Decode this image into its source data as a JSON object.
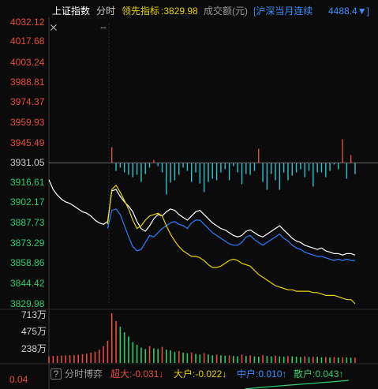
{
  "header": {
    "index_name": "上证指数",
    "tab": "分时",
    "leader_label": "领先指标",
    "leader_value": "3829.98",
    "volume_label": "成交额(元)",
    "contract_label": "[沪深当月连续",
    "contract_value": "4488.4▼]"
  },
  "icons": {
    "close": "close-icon",
    "resize": "resize-cursor-icon"
  },
  "price_axis": {
    "reference": "3931.05",
    "up_labels": [
      "4032.12",
      "4017.68",
      "4003.24",
      "3988.81",
      "3974.37",
      "3959.93",
      "3945.49"
    ],
    "down_labels": [
      "3916.61",
      "3902.17",
      "3887.73",
      "3873.29",
      "3858.86",
      "3844.42",
      "3829.98"
    ]
  },
  "volume_axis": {
    "labels": [
      "713万",
      "475万",
      "238万"
    ]
  },
  "bottom": {
    "help": "?",
    "title": "分时博弈",
    "super": "超大:-0.031↓",
    "big": "大户:-0.022↓",
    "mid": "中户:0.010↑",
    "retail": "散户:0.043↑",
    "left_value": "0.04"
  },
  "colors": {
    "up": "#e74c3c",
    "down": "#2ecc71",
    "price_line": "#ffffff",
    "avg_line": "#2a7fff",
    "leader_line": "#e6d200",
    "breadth_down": "#2bc4d0",
    "accent_blue": "#3b8fff"
  },
  "series": {
    "price": [
      [
        0,
        3919
      ],
      [
        1,
        3912
      ],
      [
        2,
        3908
      ],
      [
        3,
        3905
      ],
      [
        4,
        3903
      ],
      [
        5,
        3902
      ],
      [
        6,
        3900
      ],
      [
        7,
        3898
      ],
      [
        8,
        3896
      ],
      [
        9,
        3895
      ],
      [
        10,
        3893
      ],
      [
        11,
        3890
      ],
      [
        12,
        3888
      ],
      [
        13,
        3887
      ],
      [
        14,
        3889
      ],
      [
        15,
        3911
      ],
      [
        16,
        3912
      ],
      [
        17,
        3907
      ],
      [
        18,
        3903
      ],
      [
        19,
        3900
      ],
      [
        20,
        3896
      ],
      [
        21,
        3889
      ],
      [
        22,
        3884
      ],
      [
        23,
        3882
      ],
      [
        24,
        3886
      ],
      [
        25,
        3891
      ],
      [
        26,
        3894
      ],
      [
        27,
        3893
      ],
      [
        28,
        3896
      ],
      [
        29,
        3898
      ],
      [
        30,
        3897
      ],
      [
        31,
        3894
      ],
      [
        32,
        3892
      ],
      [
        33,
        3890
      ],
      [
        34,
        3893
      ],
      [
        35,
        3896
      ],
      [
        36,
        3897
      ],
      [
        37,
        3894
      ],
      [
        38,
        3891
      ],
      [
        39,
        3888
      ],
      [
        40,
        3886
      ],
      [
        41,
        3884
      ],
      [
        42,
        3883
      ],
      [
        43,
        3881
      ],
      [
        44,
        3879
      ],
      [
        45,
        3878
      ],
      [
        46,
        3879
      ],
      [
        47,
        3882
      ],
      [
        48,
        3883
      ],
      [
        49,
        3881
      ],
      [
        50,
        3879
      ],
      [
        51,
        3878
      ],
      [
        52,
        3880
      ],
      [
        53,
        3882
      ],
      [
        54,
        3884
      ],
      [
        55,
        3886
      ],
      [
        56,
        3883
      ],
      [
        57,
        3880
      ],
      [
        58,
        3877
      ],
      [
        59,
        3875
      ],
      [
        60,
        3874
      ],
      [
        61,
        3872
      ],
      [
        62,
        3871
      ],
      [
        63,
        3870
      ],
      [
        64,
        3869
      ],
      [
        65,
        3870
      ],
      [
        66,
        3868
      ],
      [
        67,
        3867
      ],
      [
        68,
        3866
      ],
      [
        69,
        3866
      ],
      [
        70,
        3865
      ],
      [
        71,
        3866
      ],
      [
        72,
        3866
      ],
      [
        73,
        3865
      ]
    ],
    "avg": [
      [
        14,
        3884
      ],
      [
        15,
        3897
      ],
      [
        16,
        3898
      ],
      [
        17,
        3894
      ],
      [
        18,
        3886
      ],
      [
        19,
        3878
      ],
      [
        20,
        3871
      ],
      [
        21,
        3868
      ],
      [
        22,
        3869
      ],
      [
        23,
        3874
      ],
      [
        24,
        3879
      ],
      [
        25,
        3878
      ],
      [
        26,
        3881
      ],
      [
        27,
        3884
      ],
      [
        28,
        3886
      ],
      [
        29,
        3888
      ],
      [
        30,
        3889
      ],
      [
        31,
        3887
      ],
      [
        32,
        3886
      ],
      [
        33,
        3884
      ],
      [
        34,
        3888
      ],
      [
        35,
        3890
      ],
      [
        36,
        3890
      ],
      [
        37,
        3887
      ],
      [
        38,
        3884
      ],
      [
        39,
        3881
      ],
      [
        40,
        3879
      ],
      [
        41,
        3877
      ],
      [
        42,
        3875
      ],
      [
        43,
        3873
      ],
      [
        44,
        3872
      ],
      [
        45,
        3872
      ],
      [
        46,
        3874
      ],
      [
        47,
        3878
      ],
      [
        48,
        3879
      ],
      [
        49,
        3876
      ],
      [
        50,
        3874
      ],
      [
        51,
        3872
      ],
      [
        52,
        3874
      ],
      [
        53,
        3876
      ],
      [
        54,
        3878
      ],
      [
        55,
        3880
      ],
      [
        56,
        3877
      ],
      [
        57,
        3875
      ],
      [
        58,
        3872
      ],
      [
        59,
        3870
      ],
      [
        60,
        3869
      ],
      [
        61,
        3867
      ],
      [
        62,
        3866
      ],
      [
        63,
        3865
      ],
      [
        64,
        3864
      ],
      [
        65,
        3864
      ],
      [
        66,
        3863
      ],
      [
        67,
        3862
      ],
      [
        68,
        3861
      ],
      [
        69,
        3862
      ],
      [
        70,
        3861
      ],
      [
        71,
        3862
      ],
      [
        72,
        3861
      ],
      [
        73,
        3861
      ]
    ],
    "leader": [
      [
        14,
        3887
      ],
      [
        15,
        3912
      ],
      [
        16,
        3915
      ],
      [
        17,
        3910
      ],
      [
        18,
        3904
      ],
      [
        19,
        3898
      ],
      [
        20,
        3890
      ],
      [
        21,
        3884
      ],
      [
        22,
        3886
      ],
      [
        23,
        3890
      ],
      [
        24,
        3893
      ],
      [
        25,
        3894
      ],
      [
        26,
        3895
      ],
      [
        27,
        3893
      ],
      [
        28,
        3886
      ],
      [
        29,
        3880
      ],
      [
        30,
        3875
      ],
      [
        31,
        3871
      ],
      [
        32,
        3868
      ],
      [
        33,
        3866
      ],
      [
        34,
        3864
      ],
      [
        35,
        3864
      ],
      [
        36,
        3863
      ],
      [
        37,
        3861
      ],
      [
        38,
        3858
      ],
      [
        39,
        3856
      ],
      [
        40,
        3856
      ],
      [
        41,
        3857
      ],
      [
        42,
        3859
      ],
      [
        43,
        3861
      ],
      [
        44,
        3862
      ],
      [
        45,
        3861
      ],
      [
        46,
        3859
      ],
      [
        47,
        3858
      ],
      [
        48,
        3857
      ],
      [
        49,
        3854
      ],
      [
        50,
        3851
      ],
      [
        51,
        3849
      ],
      [
        52,
        3847
      ],
      [
        53,
        3845
      ],
      [
        54,
        3843
      ],
      [
        55,
        3842
      ],
      [
        56,
        3841
      ],
      [
        57,
        3840
      ],
      [
        58,
        3840
      ],
      [
        59,
        3839
      ],
      [
        60,
        3839
      ],
      [
        61,
        3839
      ],
      [
        62,
        3839
      ],
      [
        63,
        3838
      ],
      [
        64,
        3838
      ],
      [
        65,
        3837
      ],
      [
        66,
        3836
      ],
      [
        67,
        3836
      ],
      [
        68,
        3836
      ],
      [
        69,
        3835
      ],
      [
        70,
        3834
      ],
      [
        71,
        3833
      ],
      [
        72,
        3833
      ],
      [
        73,
        3830
      ]
    ],
    "breadth": [
      [
        14,
        0
      ],
      [
        15,
        20
      ],
      [
        16,
        -10
      ],
      [
        17,
        -6
      ],
      [
        18,
        -12
      ],
      [
        19,
        -15
      ],
      [
        20,
        -18
      ],
      [
        21,
        -15
      ],
      [
        22,
        -24
      ],
      [
        23,
        -14
      ],
      [
        24,
        -6
      ],
      [
        25,
        4
      ],
      [
        26,
        -4
      ],
      [
        27,
        -12
      ],
      [
        28,
        -40
      ],
      [
        29,
        -25
      ],
      [
        30,
        -22
      ],
      [
        31,
        -15
      ],
      [
        32,
        -6
      ],
      [
        33,
        -10
      ],
      [
        34,
        -24
      ],
      [
        35,
        -12
      ],
      [
        36,
        -26
      ],
      [
        37,
        -37
      ],
      [
        38,
        -24
      ],
      [
        39,
        -20
      ],
      [
        40,
        -22
      ],
      [
        41,
        -12
      ],
      [
        42,
        -8
      ],
      [
        43,
        -22
      ],
      [
        44,
        -4
      ],
      [
        45,
        -12
      ],
      [
        46,
        -27
      ],
      [
        47,
        -14
      ],
      [
        48,
        -15
      ],
      [
        49,
        -10
      ],
      [
        50,
        18
      ],
      [
        51,
        -24
      ],
      [
        52,
        -34
      ],
      [
        53,
        -14
      ],
      [
        54,
        -22
      ],
      [
        55,
        -34
      ],
      [
        56,
        -12
      ],
      [
        57,
        -22
      ],
      [
        58,
        -16
      ],
      [
        59,
        -12
      ],
      [
        60,
        -8
      ],
      [
        61,
        -18
      ],
      [
        62,
        -10
      ],
      [
        63,
        -30
      ],
      [
        64,
        -12
      ],
      [
        65,
        -12
      ],
      [
        66,
        -18
      ],
      [
        67,
        -10
      ],
      [
        68,
        -2
      ],
      [
        69,
        -8
      ],
      [
        70,
        30
      ],
      [
        71,
        -20
      ],
      [
        72,
        10
      ],
      [
        73,
        -14
      ]
    ],
    "volume": [
      [
        0,
        95
      ],
      [
        1,
        100
      ],
      [
        2,
        102
      ],
      [
        3,
        105
      ],
      [
        4,
        108
      ],
      [
        5,
        110
      ],
      [
        6,
        112
      ],
      [
        7,
        118
      ],
      [
        8,
        125
      ],
      [
        9,
        135
      ],
      [
        10,
        148
      ],
      [
        11,
        160
      ],
      [
        12,
        190
      ],
      [
        13,
        240
      ],
      [
        14,
        320
      ],
      [
        15,
        713
      ],
      [
        16,
        600
      ],
      [
        17,
        520
      ],
      [
        18,
        440
      ],
      [
        19,
        380
      ],
      [
        20,
        300
      ],
      [
        21,
        260
      ],
      [
        22,
        220
      ],
      [
        23,
        200
      ],
      [
        24,
        240
      ],
      [
        25,
        210
      ],
      [
        26,
        200
      ],
      [
        27,
        230
      ],
      [
        28,
        190
      ],
      [
        29,
        180
      ],
      [
        30,
        160
      ],
      [
        31,
        170
      ],
      [
        32,
        150
      ],
      [
        33,
        140
      ],
      [
        34,
        150
      ],
      [
        35,
        130
      ],
      [
        36,
        120
      ],
      [
        37,
        140
      ],
      [
        38,
        120
      ],
      [
        39,
        110
      ],
      [
        40,
        120
      ],
      [
        41,
        110
      ],
      [
        42,
        105
      ],
      [
        43,
        110
      ],
      [
        44,
        100
      ],
      [
        45,
        95
      ],
      [
        46,
        120
      ],
      [
        47,
        100
      ],
      [
        48,
        110
      ],
      [
        49,
        95
      ],
      [
        50,
        90
      ],
      [
        51,
        110
      ],
      [
        52,
        100
      ],
      [
        53,
        95
      ],
      [
        54,
        105
      ],
      [
        55,
        95
      ],
      [
        56,
        90
      ],
      [
        57,
        100
      ],
      [
        58,
        95
      ],
      [
        59,
        90
      ],
      [
        60,
        85
      ],
      [
        61,
        95
      ],
      [
        62,
        85
      ],
      [
        63,
        90
      ],
      [
        64,
        88
      ],
      [
        65,
        82
      ],
      [
        66,
        86
      ],
      [
        67,
        80
      ],
      [
        68,
        84
      ],
      [
        69,
        78
      ],
      [
        70,
        82
      ],
      [
        71,
        80
      ],
      [
        72,
        76
      ],
      [
        73,
        78
      ]
    ]
  }
}
